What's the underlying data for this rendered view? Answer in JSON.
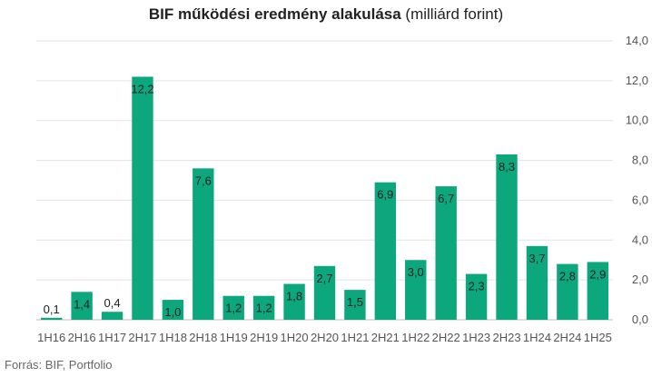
{
  "title_bold": "BIF működési eredmény alakulása",
  "title_rest": "(milliárd forint)",
  "source": "Forrás: BIF, Portfolio",
  "colors": {
    "bar": "#0ca77c",
    "grid": "#e3e3e3",
    "axis": "#bdbdbd"
  },
  "chart_data": {
    "type": "bar",
    "title": "BIF működési eredmény alakulása (milliárd forint)",
    "xlabel": "",
    "ylabel": "",
    "ylim": [
      0,
      14
    ],
    "yticks": [
      "0,0",
      "2,0",
      "4,0",
      "6,0",
      "8,0",
      "10,0",
      "12,0",
      "14,0"
    ],
    "y_axis_side": "right",
    "grid": true,
    "categories": [
      "1H16",
      "2H16",
      "1H17",
      "2H17",
      "1H18",
      "2H18",
      "1H19",
      "2H19",
      "1H20",
      "2H20",
      "1H21",
      "2H21",
      "1H22",
      "2H22",
      "1H23",
      "2H23",
      "1H24",
      "2H24",
      "1H25"
    ],
    "tick_labels": [
      "1H16",
      "2H16",
      "1H17",
      "2H17",
      "1H18",
      "2H18",
      "1H19",
      "2H19",
      "1H20",
      "2H20",
      "1H21",
      "2H21",
      "1H22",
      "2H22",
      "1H23",
      "2H23",
      "1H24",
      "2H24",
      "1H25"
    ],
    "values": [
      0.1,
      1.4,
      0.4,
      12.2,
      1.0,
      7.6,
      1.2,
      1.2,
      1.8,
      2.7,
      1.5,
      6.9,
      3.0,
      6.7,
      2.3,
      8.3,
      3.7,
      2.8,
      2.9
    ],
    "data_labels": [
      "0,1",
      "1,4",
      "0,4",
      "12,2",
      "1,0",
      "7,6",
      "1,2",
      "1,2",
      "1,8",
      "2,7",
      "1,5",
      "6,9",
      "3,0",
      "6,7",
      "2,3",
      "8,3",
      "3,7",
      "2,8",
      "2,9"
    ]
  }
}
